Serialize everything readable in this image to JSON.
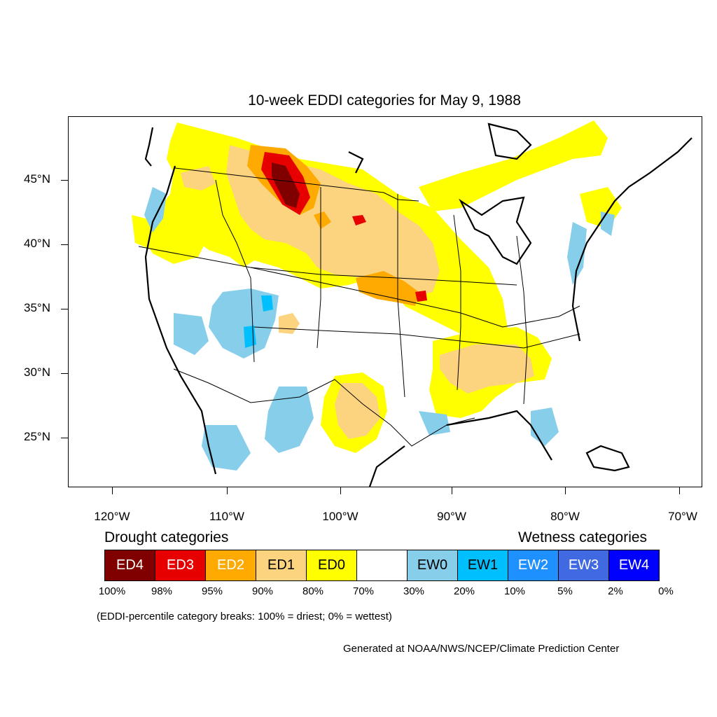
{
  "title": "10-week EDDI categories for May 9, 1988",
  "lat_labels": [
    "45°N",
    "40°N",
    "35°N",
    "30°N",
    "25°N"
  ],
  "lon_labels": [
    "120°W",
    "110°W",
    "100°W",
    "90°W",
    "80°W",
    "70°W"
  ],
  "legend": {
    "drought_heading": "Drought categories",
    "wetness_heading": "Wetness categories",
    "categories": [
      {
        "label": "ED4",
        "color": "#800000",
        "text_color": "#ffffff"
      },
      {
        "label": "ED3",
        "color": "#e60000",
        "text_color": "#ffffff"
      },
      {
        "label": "ED2",
        "color": "#ffaa00",
        "text_color": "#ffffff"
      },
      {
        "label": "ED1",
        "color": "#fcd37f",
        "text_color": "#000000"
      },
      {
        "label": "ED0",
        "color": "#ffff00",
        "text_color": "#000000"
      },
      {
        "label": "",
        "color": "#ffffff",
        "text_color": "#000000"
      },
      {
        "label": "EW0",
        "color": "#87ceeb",
        "text_color": "#000000"
      },
      {
        "label": "EW1",
        "color": "#00bfff",
        "text_color": "#000000"
      },
      {
        "label": "EW2",
        "color": "#1e90ff",
        "text_color": "#ffffff"
      },
      {
        "label": "EW3",
        "color": "#4169e1",
        "text_color": "#ffffff"
      },
      {
        "label": "EW4",
        "color": "#0000ff",
        "text_color": "#ffffff"
      }
    ],
    "breaks": [
      "100%",
      "98%",
      "95%",
      "90%",
      "80%",
      "70%",
      "30%",
      "20%",
      "10%",
      "5%",
      "2%",
      "0%"
    ]
  },
  "note": "(EDDI-percentile category breaks: 100% = driest; 0% = wettest)",
  "credit": "Generated at NOAA/NWS/NCEP/Climate Prediction Center"
}
